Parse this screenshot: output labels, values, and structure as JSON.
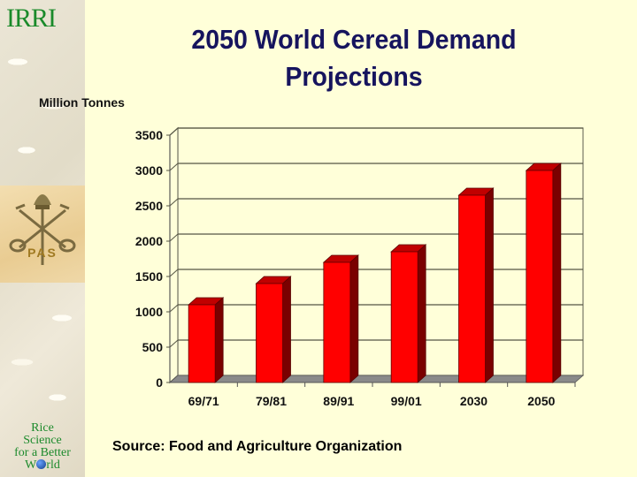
{
  "logos": {
    "irri": "IRRI",
    "pas": "PAS",
    "rice_science": [
      "Rice",
      "Science",
      "for a Better"
    ],
    "world_prefix": "W",
    "world_suffix": "rld"
  },
  "source": "Source: Food and Agriculture Organization",
  "chart_data": {
    "type": "bar",
    "title": "2050 World Cereal Demand Projections",
    "title_lines": [
      "2050 World Cereal Demand",
      "Projections"
    ],
    "ylabel": "Million Tonnes",
    "xlabel": "",
    "categories": [
      "69/71",
      "79/81",
      "89/91",
      "99/01",
      "2030",
      "2050"
    ],
    "values": [
      1100,
      1400,
      1700,
      1850,
      2650,
      3000
    ],
    "ylim": [
      0,
      3500
    ],
    "yticks": [
      0,
      500,
      1000,
      1500,
      2000,
      2500,
      3000,
      3500
    ],
    "grid": true,
    "legend": "none",
    "style": "3d",
    "colors": {
      "bar_front": "#ff0000",
      "bar_side": "#7a0000",
      "bar_top": "#c00000",
      "floor": "#8a8a8a",
      "wall": "#ffffd9",
      "grid": "#555544"
    }
  }
}
